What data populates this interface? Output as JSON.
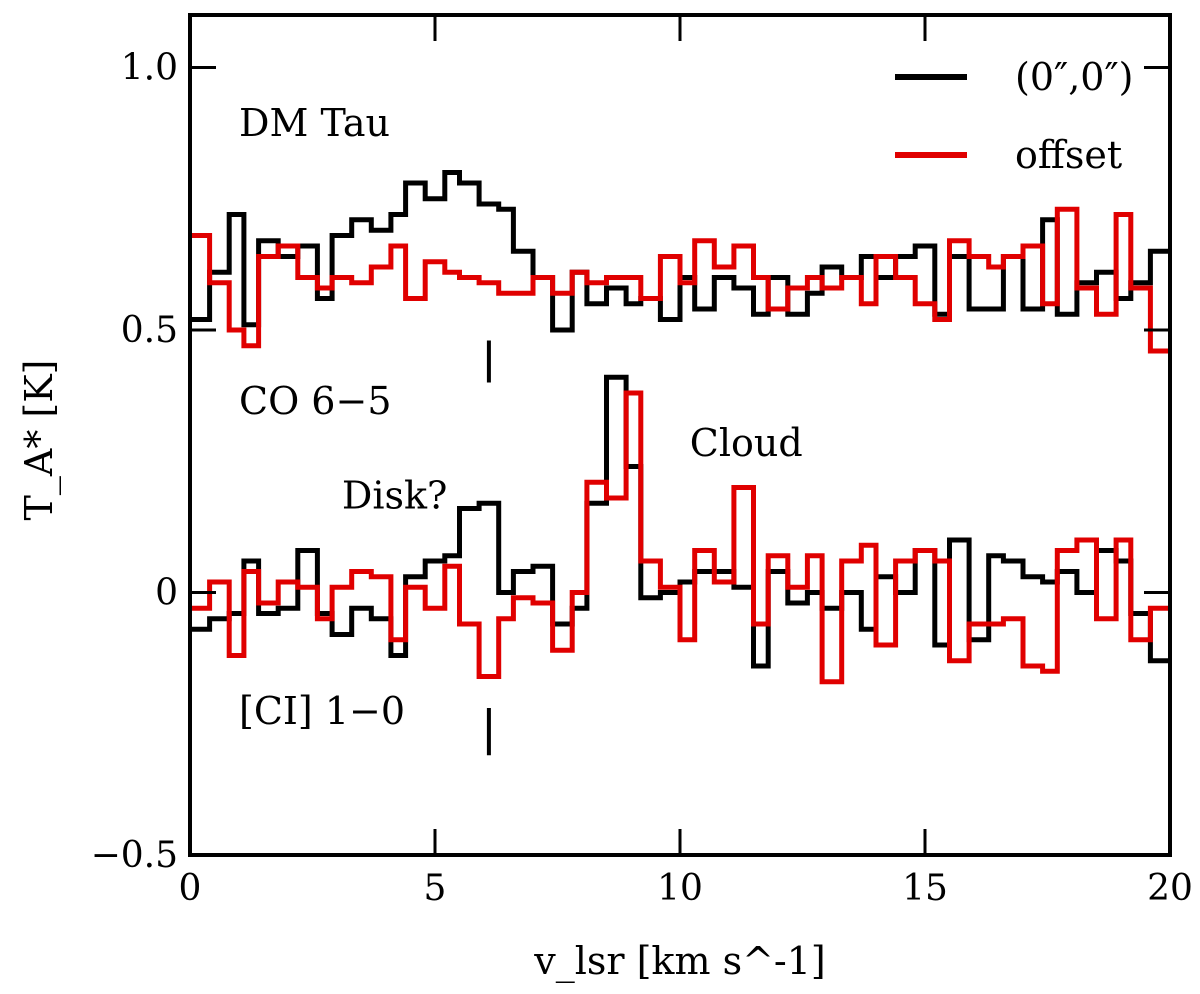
{
  "chart_data": {
    "type": "line",
    "step": true,
    "xlabel": "v_lsr [km s^-1]",
    "ylabel": "T_A* [K]",
    "xlim": [
      0,
      20
    ],
    "ylim": [
      -0.5,
      1.1
    ],
    "xticks": [
      0,
      5,
      10,
      15,
      20
    ],
    "yticks": [
      -0.5,
      0,
      0.5,
      1.0
    ],
    "xtick_labels": [
      "0",
      "5",
      "10",
      "15",
      "20"
    ],
    "ytick_labels": [
      "−0.5",
      "0",
      "0.5",
      "1.0"
    ],
    "grid": false,
    "legend_position": "top-right",
    "legend": [
      {
        "label": "(0″,0″)",
        "color": "#000000"
      },
      {
        "label": "offset",
        "color": "#e00000"
      }
    ],
    "annotations": [
      {
        "text": "DM Tau",
        "x": 1.0,
        "y": 0.87
      },
      {
        "text": "CO 6−5",
        "x": 1.0,
        "y": 0.34
      },
      {
        "text": "Cloud",
        "x": 10.2,
        "y": 0.26
      },
      {
        "text": "Disk?",
        "x": 3.1,
        "y": 0.16
      },
      {
        "text": "[CI] 1−0",
        "x": 1.0,
        "y": -0.25
      }
    ],
    "markers": [
      {
        "x": 6.1,
        "y_from": 0.4,
        "y_to": 0.48
      },
      {
        "x": 6.1,
        "y_from": -0.31,
        "y_to": -0.22
      }
    ],
    "bin_edges": [
      0,
      0.4,
      0.8,
      1.1,
      1.4,
      1.8,
      2.2,
      2.6,
      2.9,
      3.3,
      3.7,
      4.1,
      4.4,
      4.8,
      5.2,
      5.5,
      5.9,
      6.3,
      6.6,
      7.0,
      7.4,
      7.8,
      8.1,
      8.5,
      8.9,
      9.2,
      9.6,
      10.0,
      10.3,
      10.7,
      11.1,
      11.5,
      11.8,
      12.2,
      12.6,
      12.9,
      13.3,
      13.7,
      14.0,
      14.4,
      14.8,
      15.2,
      15.5,
      15.9,
      16.3,
      16.6,
      17.0,
      17.4,
      17.7,
      18.1,
      18.5,
      18.9,
      19.2,
      19.6,
      20.0
    ],
    "series": [
      {
        "name": "CO 6−5 (0″,0″)",
        "color": "#000000",
        "values": [
          0.52,
          0.61,
          0.72,
          0.51,
          0.67,
          0.64,
          0.66,
          0.56,
          0.68,
          0.71,
          0.69,
          0.72,
          0.78,
          0.75,
          0.8,
          0.78,
          0.74,
          0.73,
          0.65,
          0.6,
          0.5,
          0.61,
          0.55,
          0.58,
          0.55,
          0.56,
          0.52,
          0.6,
          0.54,
          0.6,
          0.58,
          0.53,
          0.6,
          0.53,
          0.57,
          0.62,
          0.6,
          0.64,
          0.6,
          0.64,
          0.66,
          0.53,
          0.64,
          0.54,
          0.54,
          0.64,
          0.54,
          0.71,
          0.53,
          0.59,
          0.61,
          0.56,
          0.59,
          0.65
        ]
      },
      {
        "name": "CO 6−5 offset",
        "color": "#e00000",
        "values": [
          0.68,
          0.59,
          0.5,
          0.47,
          0.64,
          0.66,
          0.6,
          0.58,
          0.6,
          0.59,
          0.62,
          0.66,
          0.56,
          0.63,
          0.61,
          0.6,
          0.59,
          0.57,
          0.57,
          0.6,
          0.57,
          0.61,
          0.59,
          0.6,
          0.6,
          0.56,
          0.64,
          0.59,
          0.67,
          0.62,
          0.66,
          0.6,
          0.54,
          0.58,
          0.6,
          0.58,
          0.6,
          0.55,
          0.64,
          0.6,
          0.55,
          0.52,
          0.67,
          0.64,
          0.62,
          0.64,
          0.66,
          0.55,
          0.73,
          0.58,
          0.53,
          0.72,
          0.58,
          0.46
        ]
      },
      {
        "name": "[CI] 1−0 (0″,0″)",
        "color": "#000000",
        "values": [
          -0.07,
          -0.05,
          -0.04,
          0.06,
          -0.04,
          -0.03,
          0.08,
          -0.04,
          -0.08,
          -0.03,
          -0.05,
          -0.12,
          0.03,
          0.06,
          0.07,
          0.16,
          0.17,
          0.0,
          0.04,
          0.05,
          -0.06,
          -0.03,
          0.17,
          0.41,
          0.24,
          -0.01,
          0.0,
          0.02,
          0.04,
          0.04,
          0.01,
          -0.14,
          0.04,
          -0.02,
          0.0,
          -0.03,
          0.0,
          -0.07,
          0.03,
          0.0,
          0.08,
          -0.1,
          0.1,
          -0.09,
          0.07,
          0.06,
          0.03,
          0.02,
          0.04,
          0.0,
          0.08,
          0.06,
          -0.04,
          -0.13
        ]
      },
      {
        "name": "[CI] 1−0 offset",
        "color": "#e00000",
        "values": [
          -0.03,
          0.02,
          -0.12,
          0.04,
          -0.02,
          0.02,
          0.01,
          -0.05,
          0.01,
          0.04,
          0.03,
          -0.09,
          0.01,
          -0.03,
          0.05,
          -0.06,
          -0.16,
          -0.05,
          -0.01,
          -0.02,
          -0.11,
          0.0,
          0.21,
          0.18,
          0.38,
          0.06,
          0.01,
          -0.09,
          0.08,
          0.02,
          0.2,
          -0.06,
          0.07,
          0.01,
          0.07,
          -0.17,
          0.06,
          0.09,
          -0.1,
          0.06,
          0.08,
          0.06,
          -0.13,
          -0.06,
          -0.06,
          -0.05,
          -0.14,
          -0.15,
          0.08,
          0.1,
          -0.05,
          0.1,
          -0.09,
          -0.03
        ]
      }
    ]
  }
}
